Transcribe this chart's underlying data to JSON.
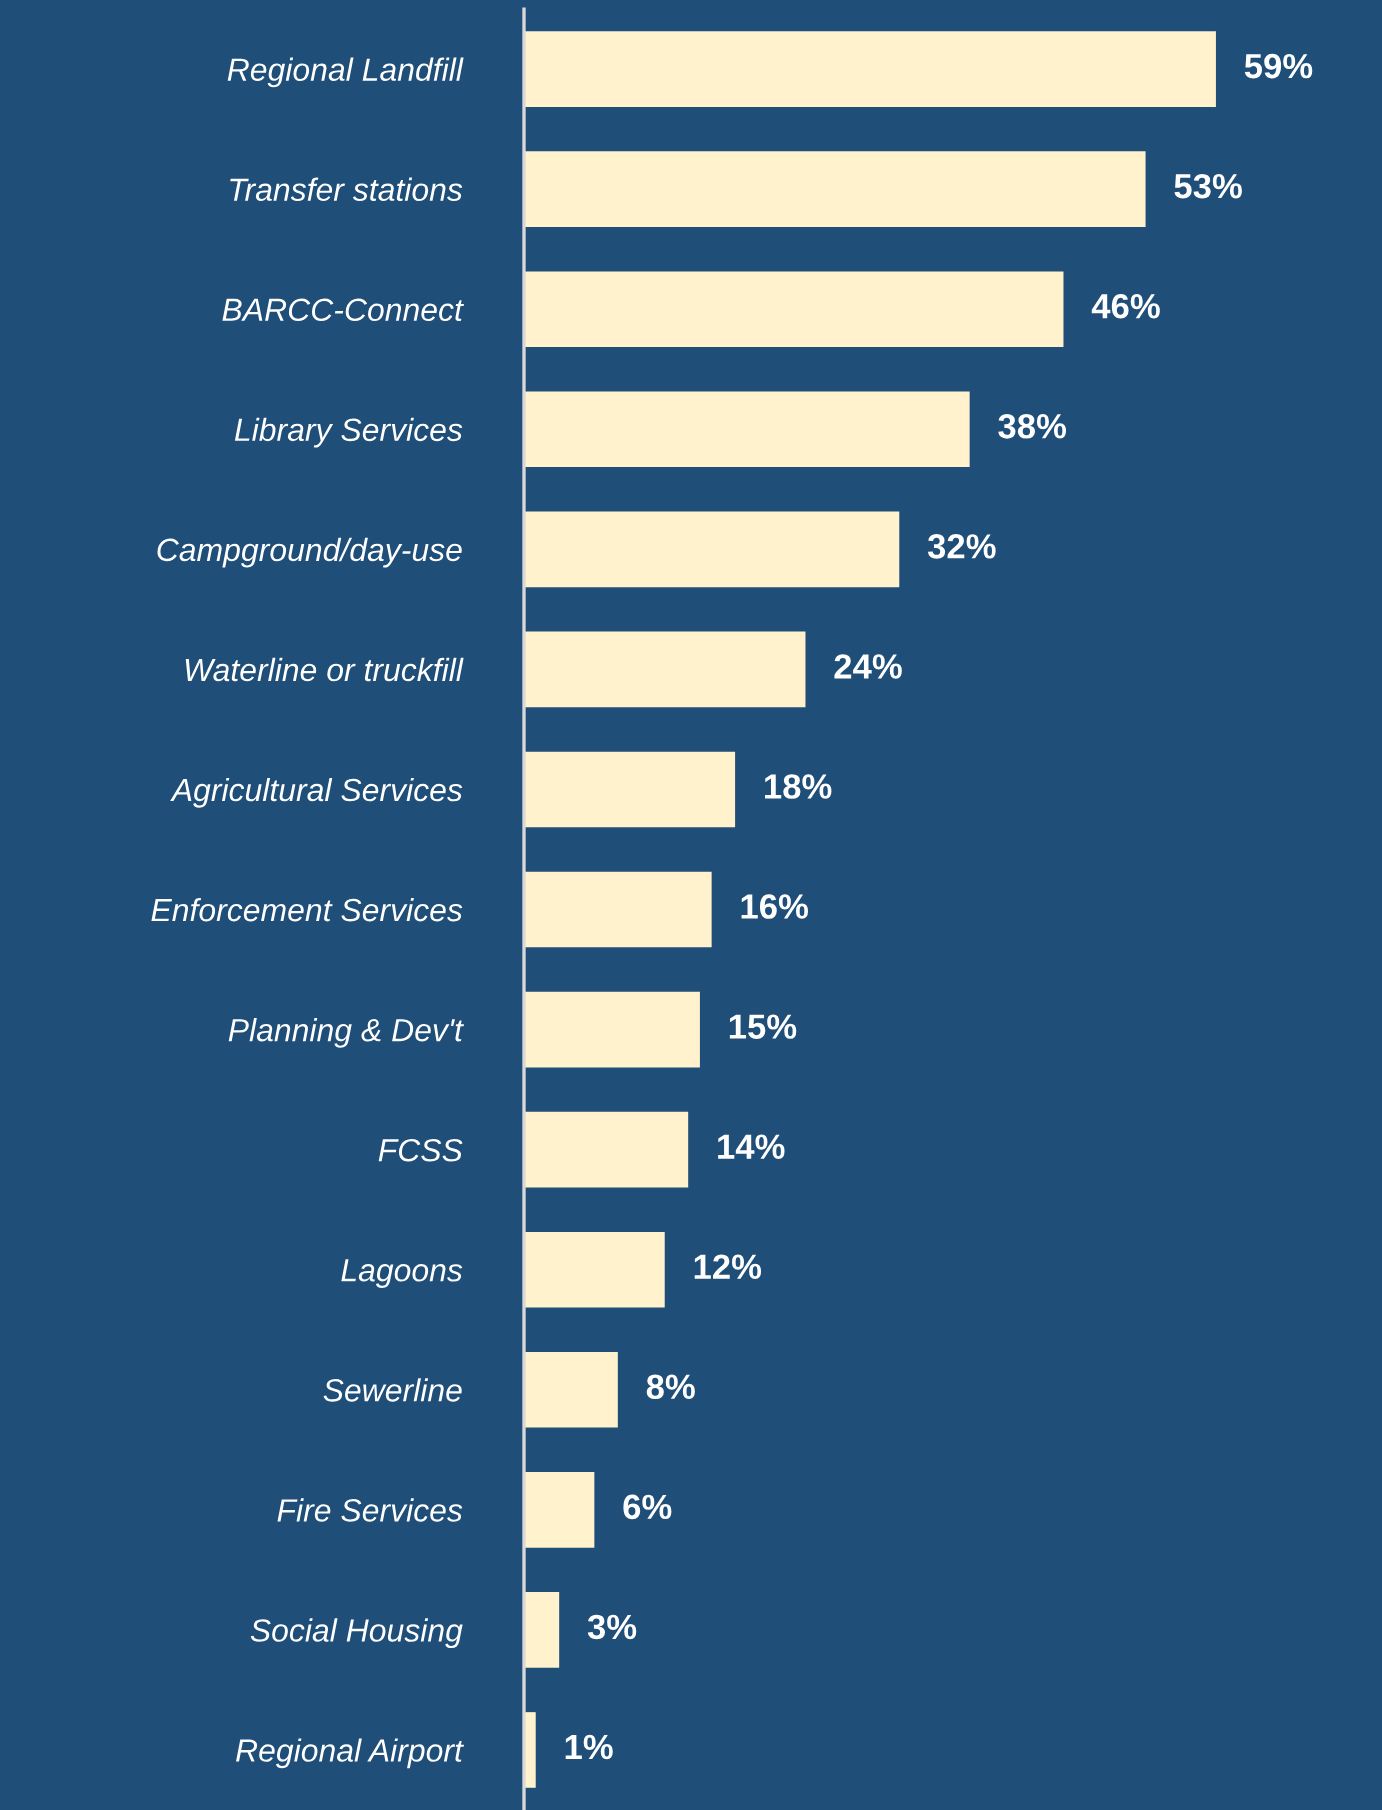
{
  "chart_data": {
    "type": "bar",
    "orientation": "horizontal",
    "categories": [
      "Regional Landfill",
      "Transfer stations",
      "BARCC-Connect",
      "Library Services",
      "Campground/day-use",
      "Waterline or truckfill",
      "Agricultural Services",
      "Enforcement Services",
      "Planning & Dev't",
      "FCSS",
      "Lagoons",
      "Sewerline",
      "Fire Services",
      "Social Housing",
      "Regional Airport"
    ],
    "values": [
      59,
      53,
      46,
      38,
      32,
      24,
      18,
      16,
      15,
      14,
      12,
      8,
      6,
      3,
      1
    ],
    "value_labels": [
      "59%",
      "53%",
      "46%",
      "38%",
      "32%",
      "24%",
      "18%",
      "16%",
      "15%",
      "14%",
      "12%",
      "8%",
      "6%",
      "3%",
      "1%"
    ],
    "color": "#fff2cc",
    "grid": false,
    "legend": false
  }
}
